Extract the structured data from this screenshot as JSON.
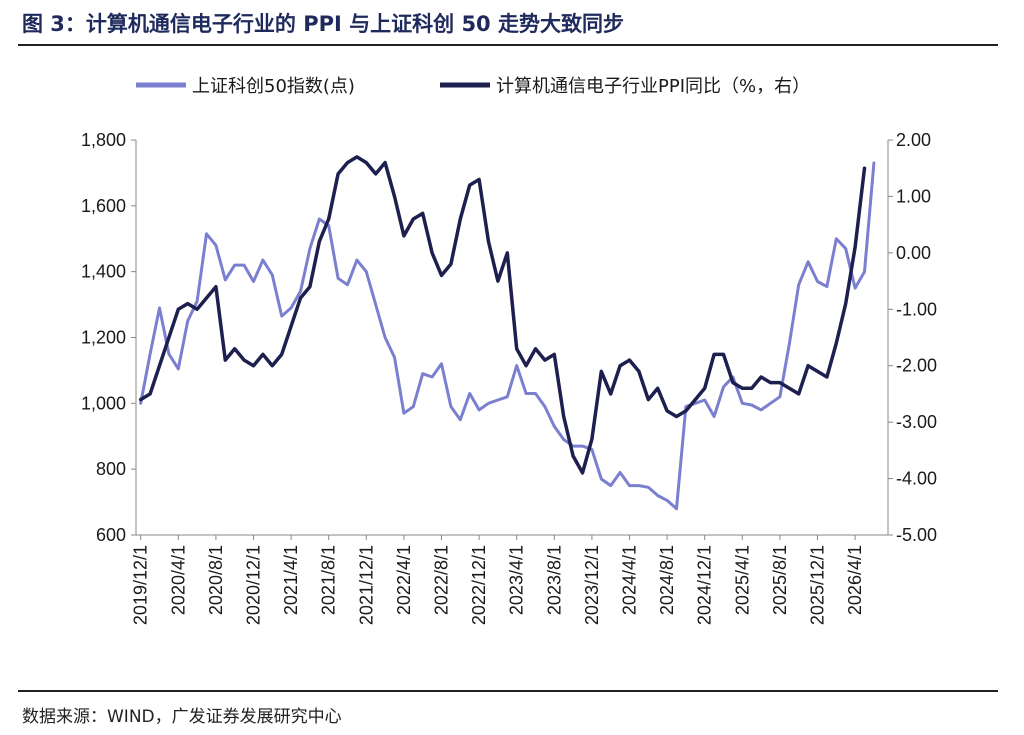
{
  "header": {
    "title": "图 3：计算机通信电子行业的 PPI 与上证科创 50 走势大致同步"
  },
  "footer": {
    "source": "数据来源：WIND，广发证券发展研究中心"
  },
  "colors": {
    "series1": "#7b7fd0",
    "series2": "#1d1f4f",
    "axis": "#888888"
  },
  "chart_data": {
    "type": "line",
    "title": "图 3：计算机通信电子行业的 PPI 与上证科创 50 走势大致同步",
    "x_tick_labels": [
      "2019/12/1",
      "2020/4/1",
      "2020/8/1",
      "2020/12/1",
      "2021/4/1",
      "2021/8/1",
      "2021/12/1",
      "2022/4/1",
      "2022/8/1",
      "2022/12/1",
      "2023/4/1",
      "2023/8/1",
      "2023/12/1",
      "2024/4/1",
      "2024/8/1",
      "2024/12/1",
      "2025/4/1",
      "2025/8/1",
      "2025/12/1",
      "2026/4/1"
    ],
    "y_left": {
      "range": [
        600,
        1800
      ],
      "ticks": [
        "600",
        "800",
        "1,000",
        "1,200",
        "1,400",
        "1,600",
        "1,800"
      ]
    },
    "y_right": {
      "range": [
        -5.0,
        2.0
      ],
      "ticks": [
        "-5.00",
        "-4.00",
        "-3.00",
        "-2.00",
        "-1.00",
        "0.00",
        "1.00",
        "2.00"
      ]
    },
    "legend_position": "top",
    "series": [
      {
        "name": "上证科创50指数(点)",
        "axis": "left",
        "values": [
          1000,
          1150,
          1290,
          1150,
          1105,
          1250,
          1310,
          1515,
          1480,
          1375,
          1420,
          1420,
          1370,
          1435,
          1390,
          1265,
          1290,
          1340,
          1470,
          1560,
          1540,
          1380,
          1360,
          1435,
          1400,
          1300,
          1200,
          1140,
          970,
          990,
          1090,
          1080,
          1120,
          990,
          950,
          1030,
          980,
          1000,
          1010,
          1020,
          1115,
          1030,
          1030,
          990,
          930,
          890,
          870,
          870,
          860,
          770,
          750,
          790,
          750,
          750,
          745,
          720,
          705,
          680,
          990,
          1000,
          1010,
          960,
          1050,
          1080,
          1000,
          995,
          980,
          1000,
          1020,
          1180,
          1360,
          1430,
          1370,
          1355,
          1500,
          1470,
          1350,
          1400,
          1730
        ]
      },
      {
        "name": "计算机通信电子行业PPI同比（%，右）",
        "axis": "right",
        "values": [
          -2.6,
          -2.5,
          -2.0,
          -1.5,
          -1.0,
          -0.9,
          -1.0,
          -0.8,
          -0.6,
          -1.9,
          -1.7,
          -1.9,
          -2.0,
          -1.8,
          -2.0,
          -1.8,
          -1.3,
          -0.8,
          -0.6,
          0.2,
          0.6,
          1.4,
          1.6,
          1.7,
          1.6,
          1.4,
          1.6,
          1.0,
          0.3,
          0.6,
          0.7,
          0.0,
          -0.4,
          -0.2,
          0.6,
          1.2,
          1.3,
          0.2,
          -0.5,
          0.0,
          -1.7,
          -2.0,
          -1.7,
          -1.9,
          -1.8,
          -2.9,
          -3.6,
          -3.9,
          -3.3,
          -2.1,
          -2.5,
          -2.0,
          -1.9,
          -2.1,
          -2.6,
          -2.4,
          -2.8,
          -2.9,
          -2.8,
          -2.6,
          -2.4,
          -1.8,
          -1.8,
          -2.3,
          -2.4,
          -2.4,
          -2.2,
          -2.3,
          -2.3,
          -2.4,
          -2.5,
          -2.0,
          -2.1,
          -2.2,
          -1.6,
          -0.9,
          0.1,
          1.5
        ]
      }
    ]
  }
}
